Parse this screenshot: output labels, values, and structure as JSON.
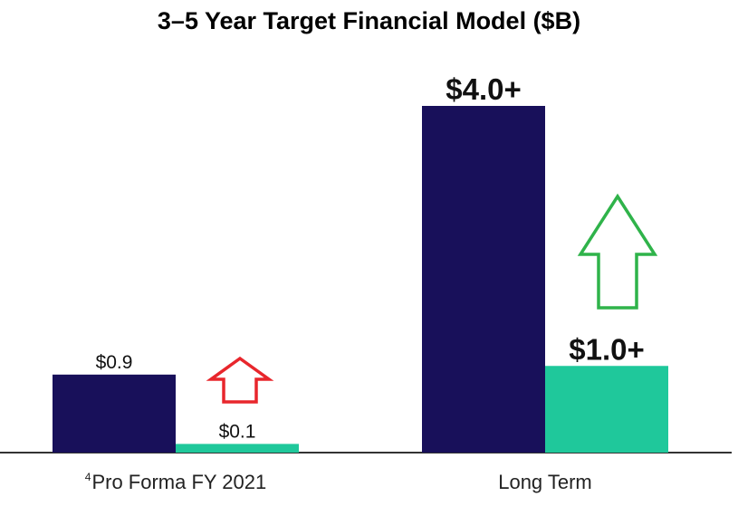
{
  "chart_data": {
    "type": "bar",
    "title": "3–5 Year Target Financial Model ($B)",
    "categories": [
      "Pro Forma FY 2021",
      "Long Term"
    ],
    "category_footnotes": [
      "4",
      ""
    ],
    "series": [
      {
        "values": [
          0.9,
          4.0
        ],
        "labels": [
          "$0.9",
          "$4.0+"
        ],
        "color": "#18105a"
      },
      {
        "values": [
          0.1,
          1.0
        ],
        "labels": [
          "$0.1",
          "$1.0+"
        ],
        "color": "#1fc89b"
      }
    ],
    "ylim": [
      0,
      4.0
    ],
    "grid": false,
    "legend": "none",
    "annotations": [
      {
        "type": "up-arrow-icon",
        "category": "Pro Forma FY 2021",
        "color": "#e8262c"
      },
      {
        "type": "up-arrow-icon",
        "category": "Long Term",
        "color": "#2fb34a"
      }
    ]
  }
}
